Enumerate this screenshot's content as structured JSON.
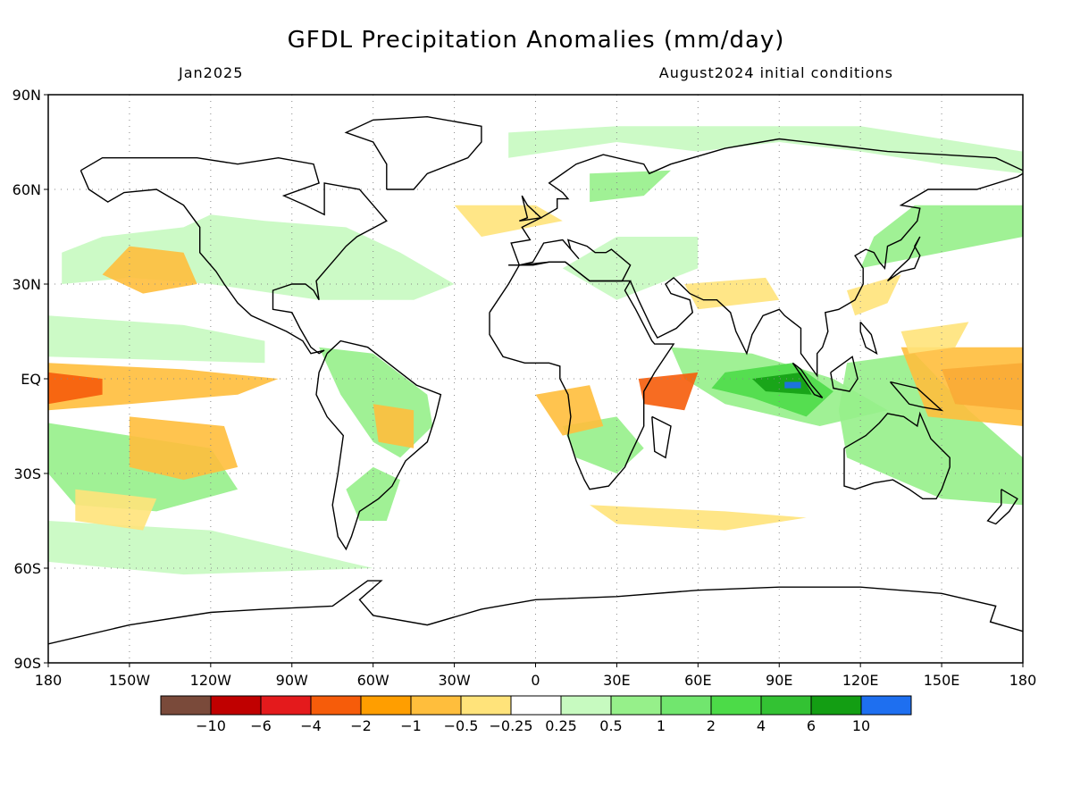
{
  "title": "GFDL Precipitation Anomalies (mm/day)",
  "subtitle_left": "Jan2025",
  "subtitle_right": "August2024 initial conditions",
  "map": {
    "projection": "equirectangular",
    "lon_range": [
      -180,
      180
    ],
    "lat_range": [
      -90,
      90
    ],
    "grid": true,
    "coastlines": true,
    "lat_tick_labels": [
      "90N",
      "60N",
      "30N",
      "EQ",
      "30S",
      "60S",
      "90S"
    ],
    "lon_tick_labels": [
      "180",
      "150W",
      "120W",
      "90W",
      "60W",
      "30W",
      "0",
      "30E",
      "60E",
      "90E",
      "120E",
      "150E",
      "180"
    ]
  },
  "colorbar": {
    "orientation": "horizontal",
    "location": "bottom",
    "colors": [
      "#7a4a3a",
      "#c00000",
      "#e41a1c",
      "#f65c0a",
      "#ff9e00",
      "#ffbe3c",
      "#ffe37a",
      "#ffffff",
      "#c7fac0",
      "#96f08a",
      "#71e66e",
      "#4cdb48",
      "#33c233",
      "#139e13",
      "#1e6ff0"
    ],
    "labels": [
      "−10",
      "−6",
      "−4",
      "−2",
      "−1",
      "−0.5",
      "−0.25",
      "0.25",
      "0.5",
      "1",
      "2",
      "4",
      "6",
      "10"
    ]
  },
  "anomaly_colors": {
    "dry_strong": "#c00000",
    "dry_medium": "#f65c0a",
    "dry_weak": "#ffbe3c",
    "dry_slight": "#ffe37a",
    "wet_slight": "#c7fac0",
    "wet_weak": "#96f08a",
    "wet_medium": "#4cdb48",
    "wet_strong": "#139e13",
    "wet_extreme": "#1e6ff0"
  }
}
